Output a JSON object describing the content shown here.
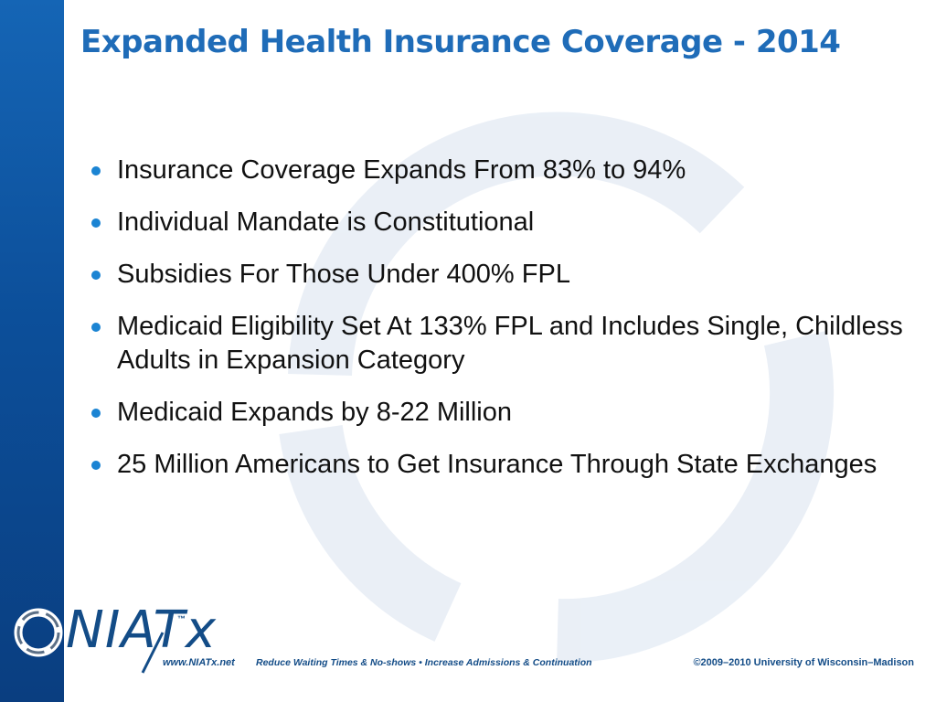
{
  "slide": {
    "title": "Expanded Health Insurance Coverage - 2014",
    "bullets": [
      "Insurance Coverage Expands From 83% to 94%",
      "Individual Mandate is Constitutional",
      "Subsidies For Those Under 400% FPL",
      "Medicaid Eligibility Set At 133% FPL and Includes Single, Childless Adults in Expansion Category",
      "Medicaid Expands by 8-22 Million",
      "25 Million Americans to Get Insurance Through State Exchanges"
    ]
  },
  "footer": {
    "brand_name": "NIATx",
    "trademark": "™",
    "url": "www.NIATx.net",
    "tagline": "Reduce Waiting Times & No-shows • Increase Admissions & Continuation",
    "copyright": "©2009–2010 University of Wisconsin–Madison"
  },
  "colors": {
    "title": "#1f6cb8",
    "bullet_dot": "#1b84d3",
    "left_bar": "#0c4f9a",
    "footer_text": "#134c87"
  },
  "icons": {
    "logo": "niatx-ring-logo-icon",
    "bullet": "bullet-dot-icon"
  }
}
